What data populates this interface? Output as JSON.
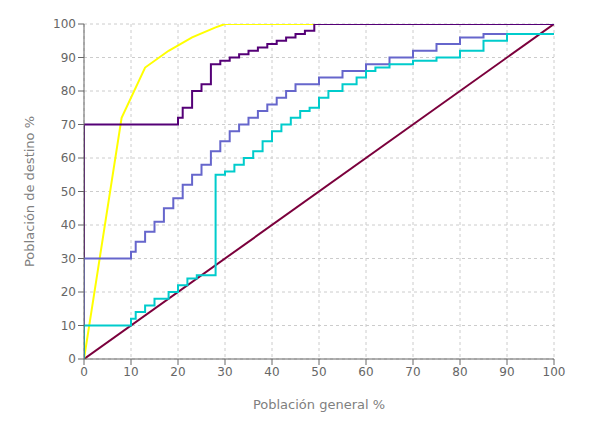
{
  "chart_data": {
    "type": "line",
    "xlabel": "Población general %",
    "ylabel": "Población de destino %",
    "xlim": [
      0,
      100
    ],
    "ylim": [
      0,
      100
    ],
    "xticks": [
      0,
      10,
      20,
      30,
      40,
      50,
      60,
      70,
      80,
      90,
      100
    ],
    "yticks": [
      0,
      10,
      20,
      30,
      40,
      50,
      60,
      70,
      80,
      90,
      100
    ],
    "grid": true,
    "series": [
      {
        "type": "line",
        "color": "#7b003c",
        "x": [
          0,
          100
        ],
        "values": [
          0,
          100
        ]
      },
      {
        "type": "line",
        "color": "#ffff00",
        "x": [
          0,
          3,
          8,
          13,
          18,
          23,
          28,
          30,
          100
        ],
        "values": [
          0,
          27,
          72,
          87,
          92,
          96,
          99,
          100,
          100
        ]
      },
      {
        "type": "step",
        "color": "#550077",
        "x": [
          0,
          20,
          21,
          23,
          25,
          27,
          29,
          31,
          33,
          35,
          37,
          39,
          41,
          43,
          45,
          47,
          49,
          51,
          100
        ],
        "values": [
          0,
          70,
          72,
          75,
          80,
          82,
          88,
          89,
          90,
          91,
          92,
          93,
          94,
          95,
          96,
          97,
          98,
          100,
          100
        ]
      },
      {
        "type": "step",
        "color": "#6666cc",
        "x": [
          0,
          10,
          11,
          13,
          15,
          17,
          19,
          21,
          23,
          25,
          27,
          29,
          31,
          33,
          35,
          37,
          39,
          41,
          43,
          45,
          50,
          55,
          60,
          65,
          70,
          75,
          80,
          85,
          90,
          100
        ],
        "values": [
          0,
          30,
          32,
          35,
          38,
          41,
          45,
          48,
          52,
          55,
          58,
          62,
          65,
          68,
          70,
          72,
          74,
          76,
          78,
          80,
          82,
          84,
          86,
          88,
          90,
          92,
          94,
          96,
          97,
          97
        ]
      },
      {
        "type": "step",
        "color": "#00cccc",
        "x": [
          0,
          10,
          11,
          13,
          15,
          18,
          20,
          22,
          24,
          26,
          28,
          30,
          32,
          34,
          36,
          38,
          40,
          42,
          44,
          46,
          48,
          50,
          52,
          55,
          58,
          60,
          62,
          65,
          70,
          75,
          80,
          85,
          90,
          92,
          100
        ],
        "values": [
          0,
          10,
          12,
          14,
          16,
          18,
          20,
          22,
          24,
          25,
          25,
          55,
          56,
          58,
          60,
          62,
          65,
          68,
          70,
          72,
          74,
          75,
          78,
          80,
          82,
          84,
          86,
          87,
          88,
          89,
          90,
          92,
          95,
          97,
          97
        ]
      }
    ]
  }
}
